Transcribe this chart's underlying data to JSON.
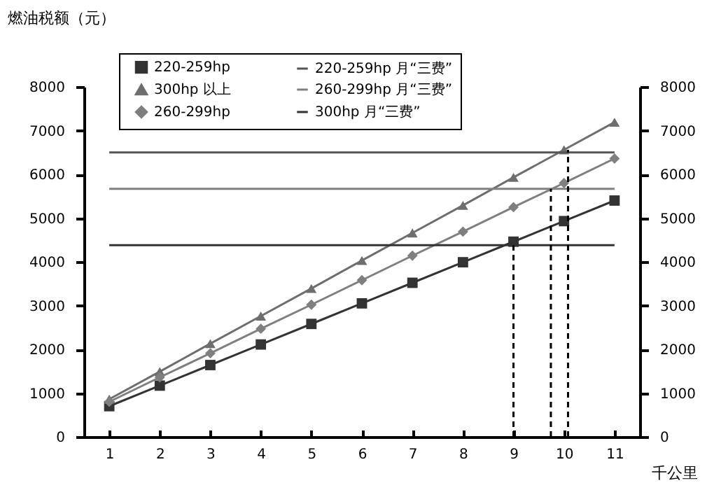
{
  "chart_data": {
    "type": "line",
    "ylabel": "燃油税额（元）",
    "xlabel": "千公里",
    "x": [
      1,
      2,
      3,
      4,
      5,
      6,
      7,
      8,
      9,
      10,
      11
    ],
    "xlim": [
      0.5,
      11.5
    ],
    "xticks": [
      1,
      2,
      3,
      4,
      5,
      6,
      7,
      8,
      9,
      10,
      11
    ],
    "ylim": [
      0,
      8000
    ],
    "yticks": [
      0,
      1000,
      2000,
      3000,
      4000,
      5000,
      6000,
      7000,
      8000
    ],
    "y2lim": [
      0,
      8000
    ],
    "y2ticks": [
      0,
      1000,
      2000,
      3000,
      4000,
      5000,
      6000,
      7000,
      8000
    ],
    "legend": "top",
    "grid": false,
    "series": [
      {
        "name": "220-259hp",
        "color": "#333333",
        "marker": "square",
        "values": [
          700,
          1170,
          1640,
          2110,
          2580,
          3050,
          3520,
          3990,
          4460,
          4930,
          5400
        ]
      },
      {
        "name": "300hp 以上",
        "color": "#6e6e6e",
        "marker": "triangle",
        "values": [
          860,
          1490,
          2130,
          2760,
          3390,
          4030,
          4660,
          5290,
          5930,
          6560,
          7190
        ]
      },
      {
        "name": "260-299hp",
        "color": "#7f7f7f",
        "marker": "diamond",
        "values": [
          800,
          1360,
          1910,
          2470,
          3020,
          3580,
          4140,
          4690,
          5250,
          5800,
          6360
        ]
      },
      {
        "name": "220-259hp 月“三费”",
        "color": "#555555",
        "marker": "none",
        "x": [
          1,
          11
        ],
        "values": [
          6500,
          6500
        ]
      },
      {
        "name": "260-299hp 月“三费”",
        "color": "#808080",
        "marker": "none",
        "x": [
          1,
          11
        ],
        "values": [
          5670,
          5670
        ]
      },
      {
        "name": "300hp 月“三费”",
        "color": "#333333",
        "marker": "none",
        "x": [
          1,
          11
        ],
        "values": [
          4380,
          4380
        ]
      },
      {
        "color": "#000000",
        "marker": "none",
        "line_style": "dashed",
        "x": [
          9,
          9
        ],
        "values": [
          0,
          4380
        ]
      },
      {
        "color": "#000000",
        "marker": "none",
        "line_style": "dashed",
        "x": [
          9.74,
          9.74
        ],
        "values": [
          0,
          5670
        ]
      },
      {
        "color": "#000000",
        "marker": "none",
        "line_style": "dashed",
        "x": [
          10.08,
          10.08
        ],
        "values": [
          0,
          6560
        ]
      }
    ]
  }
}
